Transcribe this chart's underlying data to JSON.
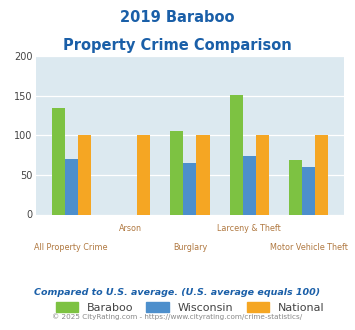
{
  "title_line1": "2019 Baraboo",
  "title_line2": "Property Crime Comparison",
  "categories": [
    "All Property Crime",
    "Arson",
    "Burglary",
    "Larceny & Theft",
    "Motor Vehicle Theft"
  ],
  "baraboo": [
    135,
    0,
    105,
    151,
    69
  ],
  "wisconsin": [
    70,
    0,
    65,
    74,
    60
  ],
  "national": [
    100,
    100,
    100,
    100,
    100
  ],
  "bar_color_baraboo": "#7dc242",
  "bar_color_wisconsin": "#4d8fcc",
  "bar_color_national": "#f5a623",
  "ylim": [
    0,
    200
  ],
  "yticks": [
    0,
    50,
    100,
    150,
    200
  ],
  "plot_bg": "#dce9f0",
  "title_color": "#1a5fa8",
  "xlabel_color_odd": "#b07840",
  "xlabel_color_even": "#b07840",
  "footer_note": "Compared to U.S. average. (U.S. average equals 100)",
  "footer_copy": "© 2025 CityRating.com - https://www.cityrating.com/crime-statistics/",
  "legend_labels": [
    "Baraboo",
    "Wisconsin",
    "National"
  ],
  "bar_width": 0.22
}
